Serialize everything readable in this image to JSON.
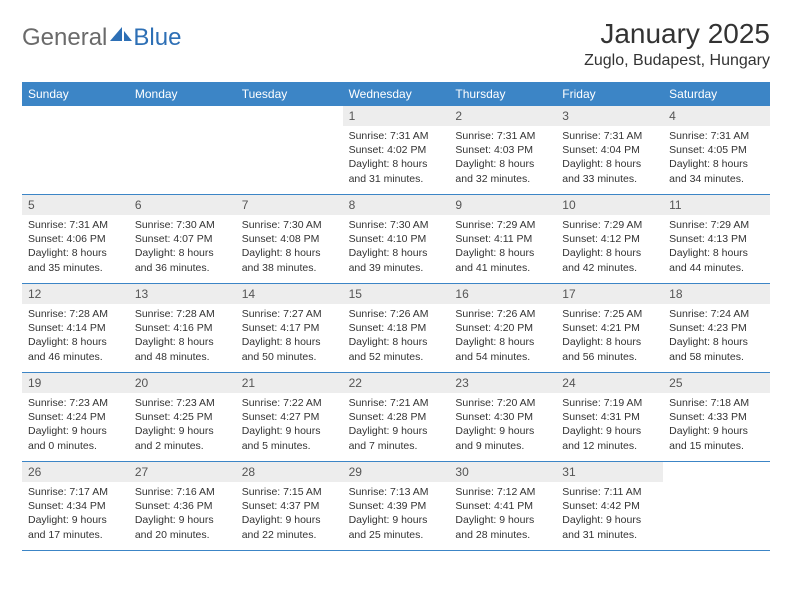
{
  "logo": {
    "text1": "General",
    "text2": "Blue"
  },
  "title": "January 2025",
  "location": "Zuglo, Budapest, Hungary",
  "colors": {
    "header_bg": "#3c85c6",
    "header_text": "#ffffff",
    "daynum_bg": "#ededed",
    "week_border": "#3c85c6",
    "logo_gray": "#6a6a6a",
    "logo_blue": "#2d6fb5"
  },
  "weekdays": [
    "Sunday",
    "Monday",
    "Tuesday",
    "Wednesday",
    "Thursday",
    "Friday",
    "Saturday"
  ],
  "weeks": [
    [
      {
        "n": "",
        "sr": "",
        "ss": "",
        "dl": ""
      },
      {
        "n": "",
        "sr": "",
        "ss": "",
        "dl": ""
      },
      {
        "n": "",
        "sr": "",
        "ss": "",
        "dl": ""
      },
      {
        "n": "1",
        "sr": "Sunrise: 7:31 AM",
        "ss": "Sunset: 4:02 PM",
        "dl": "Daylight: 8 hours and 31 minutes."
      },
      {
        "n": "2",
        "sr": "Sunrise: 7:31 AM",
        "ss": "Sunset: 4:03 PM",
        "dl": "Daylight: 8 hours and 32 minutes."
      },
      {
        "n": "3",
        "sr": "Sunrise: 7:31 AM",
        "ss": "Sunset: 4:04 PM",
        "dl": "Daylight: 8 hours and 33 minutes."
      },
      {
        "n": "4",
        "sr": "Sunrise: 7:31 AM",
        "ss": "Sunset: 4:05 PM",
        "dl": "Daylight: 8 hours and 34 minutes."
      }
    ],
    [
      {
        "n": "5",
        "sr": "Sunrise: 7:31 AM",
        "ss": "Sunset: 4:06 PM",
        "dl": "Daylight: 8 hours and 35 minutes."
      },
      {
        "n": "6",
        "sr": "Sunrise: 7:30 AM",
        "ss": "Sunset: 4:07 PM",
        "dl": "Daylight: 8 hours and 36 minutes."
      },
      {
        "n": "7",
        "sr": "Sunrise: 7:30 AM",
        "ss": "Sunset: 4:08 PM",
        "dl": "Daylight: 8 hours and 38 minutes."
      },
      {
        "n": "8",
        "sr": "Sunrise: 7:30 AM",
        "ss": "Sunset: 4:10 PM",
        "dl": "Daylight: 8 hours and 39 minutes."
      },
      {
        "n": "9",
        "sr": "Sunrise: 7:29 AM",
        "ss": "Sunset: 4:11 PM",
        "dl": "Daylight: 8 hours and 41 minutes."
      },
      {
        "n": "10",
        "sr": "Sunrise: 7:29 AM",
        "ss": "Sunset: 4:12 PM",
        "dl": "Daylight: 8 hours and 42 minutes."
      },
      {
        "n": "11",
        "sr": "Sunrise: 7:29 AM",
        "ss": "Sunset: 4:13 PM",
        "dl": "Daylight: 8 hours and 44 minutes."
      }
    ],
    [
      {
        "n": "12",
        "sr": "Sunrise: 7:28 AM",
        "ss": "Sunset: 4:14 PM",
        "dl": "Daylight: 8 hours and 46 minutes."
      },
      {
        "n": "13",
        "sr": "Sunrise: 7:28 AM",
        "ss": "Sunset: 4:16 PM",
        "dl": "Daylight: 8 hours and 48 minutes."
      },
      {
        "n": "14",
        "sr": "Sunrise: 7:27 AM",
        "ss": "Sunset: 4:17 PM",
        "dl": "Daylight: 8 hours and 50 minutes."
      },
      {
        "n": "15",
        "sr": "Sunrise: 7:26 AM",
        "ss": "Sunset: 4:18 PM",
        "dl": "Daylight: 8 hours and 52 minutes."
      },
      {
        "n": "16",
        "sr": "Sunrise: 7:26 AM",
        "ss": "Sunset: 4:20 PM",
        "dl": "Daylight: 8 hours and 54 minutes."
      },
      {
        "n": "17",
        "sr": "Sunrise: 7:25 AM",
        "ss": "Sunset: 4:21 PM",
        "dl": "Daylight: 8 hours and 56 minutes."
      },
      {
        "n": "18",
        "sr": "Sunrise: 7:24 AM",
        "ss": "Sunset: 4:23 PM",
        "dl": "Daylight: 8 hours and 58 minutes."
      }
    ],
    [
      {
        "n": "19",
        "sr": "Sunrise: 7:23 AM",
        "ss": "Sunset: 4:24 PM",
        "dl": "Daylight: 9 hours and 0 minutes."
      },
      {
        "n": "20",
        "sr": "Sunrise: 7:23 AM",
        "ss": "Sunset: 4:25 PM",
        "dl": "Daylight: 9 hours and 2 minutes."
      },
      {
        "n": "21",
        "sr": "Sunrise: 7:22 AM",
        "ss": "Sunset: 4:27 PM",
        "dl": "Daylight: 9 hours and 5 minutes."
      },
      {
        "n": "22",
        "sr": "Sunrise: 7:21 AM",
        "ss": "Sunset: 4:28 PM",
        "dl": "Daylight: 9 hours and 7 minutes."
      },
      {
        "n": "23",
        "sr": "Sunrise: 7:20 AM",
        "ss": "Sunset: 4:30 PM",
        "dl": "Daylight: 9 hours and 9 minutes."
      },
      {
        "n": "24",
        "sr": "Sunrise: 7:19 AM",
        "ss": "Sunset: 4:31 PM",
        "dl": "Daylight: 9 hours and 12 minutes."
      },
      {
        "n": "25",
        "sr": "Sunrise: 7:18 AM",
        "ss": "Sunset: 4:33 PM",
        "dl": "Daylight: 9 hours and 15 minutes."
      }
    ],
    [
      {
        "n": "26",
        "sr": "Sunrise: 7:17 AM",
        "ss": "Sunset: 4:34 PM",
        "dl": "Daylight: 9 hours and 17 minutes."
      },
      {
        "n": "27",
        "sr": "Sunrise: 7:16 AM",
        "ss": "Sunset: 4:36 PM",
        "dl": "Daylight: 9 hours and 20 minutes."
      },
      {
        "n": "28",
        "sr": "Sunrise: 7:15 AM",
        "ss": "Sunset: 4:37 PM",
        "dl": "Daylight: 9 hours and 22 minutes."
      },
      {
        "n": "29",
        "sr": "Sunrise: 7:13 AM",
        "ss": "Sunset: 4:39 PM",
        "dl": "Daylight: 9 hours and 25 minutes."
      },
      {
        "n": "30",
        "sr": "Sunrise: 7:12 AM",
        "ss": "Sunset: 4:41 PM",
        "dl": "Daylight: 9 hours and 28 minutes."
      },
      {
        "n": "31",
        "sr": "Sunrise: 7:11 AM",
        "ss": "Sunset: 4:42 PM",
        "dl": "Daylight: 9 hours and 31 minutes."
      },
      {
        "n": "",
        "sr": "",
        "ss": "",
        "dl": ""
      }
    ]
  ]
}
